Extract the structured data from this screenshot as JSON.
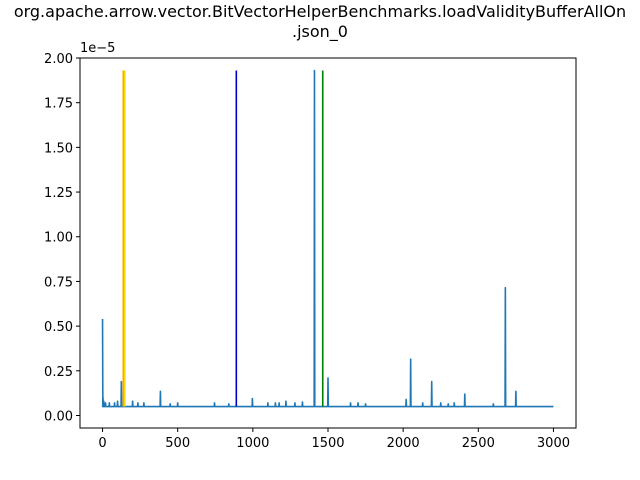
{
  "chart_data": {
    "type": "line",
    "title_line1": "org.apache.arrow.vector.BitVectorHelperBenchmarks.loadValidityBufferAllOn",
    "title_line2": ".json_0",
    "xlabel": "",
    "ylabel": "",
    "y_offset_text": "1e−5",
    "xlim": [
      -150,
      3150
    ],
    "ylim": [
      -0.07,
      2.0
    ],
    "x_ticks": [
      0,
      500,
      1000,
      1500,
      2000,
      2500,
      3000
    ],
    "x_tick_labels": [
      "0",
      "500",
      "1000",
      "1500",
      "2000",
      "2500",
      "3000"
    ],
    "y_ticks": [
      0.0,
      0.25,
      0.5,
      0.75,
      1.0,
      1.25,
      1.5,
      1.75,
      2.0
    ],
    "y_tick_labels": [
      "0.00",
      "0.25",
      "0.50",
      "0.75",
      "1.00",
      "1.25",
      "1.50",
      "1.75",
      "2.00"
    ],
    "grid": false,
    "series": [
      {
        "color": "#1f77b4",
        "baseline": 0.05,
        "x_end": 3000,
        "spikes": [
          [
            0,
            0.54
          ],
          [
            3,
            0.1
          ],
          [
            8,
            0.08
          ],
          [
            20,
            0.07
          ],
          [
            45,
            0.07
          ],
          [
            80,
            0.07
          ],
          [
            100,
            0.08
          ],
          [
            125,
            0.19
          ],
          [
            140,
            0.08
          ],
          [
            200,
            0.08
          ],
          [
            235,
            0.07
          ],
          [
            275,
            0.07
          ],
          [
            385,
            0.135
          ],
          [
            450,
            0.065
          ],
          [
            500,
            0.07
          ],
          [
            745,
            0.07
          ],
          [
            840,
            0.065
          ],
          [
            997,
            0.095
          ],
          [
            1100,
            0.07
          ],
          [
            1150,
            0.07
          ],
          [
            1175,
            0.07
          ],
          [
            1220,
            0.08
          ],
          [
            1280,
            0.07
          ],
          [
            1330,
            0.075
          ],
          [
            1410,
            1.93
          ],
          [
            1500,
            0.21
          ],
          [
            1650,
            0.07
          ],
          [
            1700,
            0.07
          ],
          [
            1750,
            0.065
          ],
          [
            2020,
            0.09
          ],
          [
            2050,
            0.315
          ],
          [
            2130,
            0.07
          ],
          [
            2190,
            0.19
          ],
          [
            2250,
            0.07
          ],
          [
            2300,
            0.065
          ],
          [
            2340,
            0.07
          ],
          [
            2410,
            0.12
          ],
          [
            2600,
            0.065
          ],
          [
            2680,
            0.715
          ],
          [
            2750,
            0.135
          ]
        ]
      }
    ],
    "vlines": [
      {
        "x": 138,
        "color": "#ffa500",
        "y_from": 0.05,
        "y_to": 1.93
      },
      {
        "x": 148,
        "color": "#ffd700",
        "y_from": 0.05,
        "y_to": 1.93
      },
      {
        "x": 890,
        "color": "#0000cd",
        "y_from": 0.05,
        "y_to": 1.93
      },
      {
        "x": 1465,
        "color": "#008000",
        "y_from": 0.05,
        "y_to": 1.93
      }
    ]
  }
}
